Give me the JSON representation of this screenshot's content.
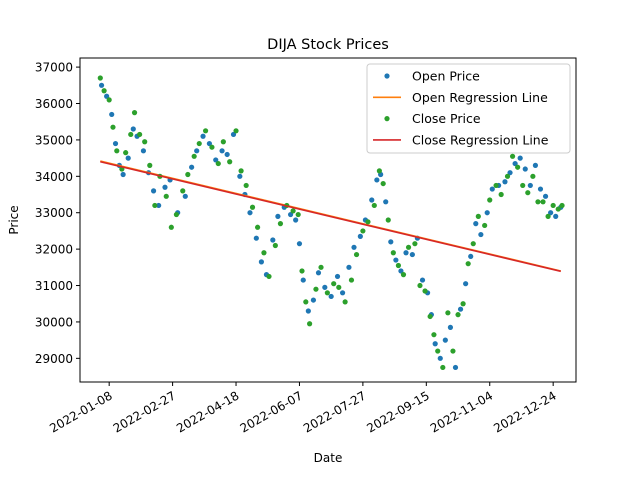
{
  "chart_data": {
    "type": "scatter",
    "title": "DIJA Stock Prices",
    "xlabel": "Date",
    "ylabel": "Price",
    "x_tick_labels": [
      "2022-01-08",
      "2022-02-27",
      "2022-04-18",
      "2022-06-07",
      "2022-07-27",
      "2022-09-15",
      "2022-11-04",
      "2022-12-24"
    ],
    "y_ticks": [
      29000,
      30000,
      31000,
      32000,
      33000,
      34000,
      35000,
      36000,
      37000
    ],
    "xlim": [
      "2021-12-16",
      "2023-01-11"
    ],
    "ylim": [
      28350,
      37250
    ],
    "grid": false,
    "legend_position": "top-right",
    "colors": {
      "open": "#1f77b4",
      "open_line": "#ff7f0e",
      "close": "#2ca02c",
      "close_line": "#d62728"
    },
    "series": [
      {
        "name": "Open Price",
        "kind": "points",
        "color": "#1f77b4",
        "points": [
          [
            "2022-01-02",
            36500
          ],
          [
            "2022-01-06",
            36200
          ],
          [
            "2022-01-10",
            35700
          ],
          [
            "2022-01-13",
            34900
          ],
          [
            "2022-01-16",
            34300
          ],
          [
            "2022-01-19",
            34050
          ],
          [
            "2022-01-23",
            34500
          ],
          [
            "2022-01-27",
            35300
          ],
          [
            "2022-01-30",
            35100
          ],
          [
            "2022-02-04",
            34700
          ],
          [
            "2022-02-08",
            34100
          ],
          [
            "2022-02-12",
            33600
          ],
          [
            "2022-02-16",
            33200
          ],
          [
            "2022-02-21",
            33700
          ],
          [
            "2022-02-25",
            33900
          ],
          [
            "2022-03-03",
            33000
          ],
          [
            "2022-03-09",
            33450
          ],
          [
            "2022-03-14",
            34250
          ],
          [
            "2022-03-18",
            34700
          ],
          [
            "2022-03-23",
            35100
          ],
          [
            "2022-03-28",
            34900
          ],
          [
            "2022-04-02",
            34450
          ],
          [
            "2022-04-07",
            34700
          ],
          [
            "2022-04-11",
            34600
          ],
          [
            "2022-04-16",
            35150
          ],
          [
            "2022-04-21",
            34000
          ],
          [
            "2022-04-25",
            33500
          ],
          [
            "2022-04-29",
            33000
          ],
          [
            "2022-05-04",
            32300
          ],
          [
            "2022-05-08",
            31650
          ],
          [
            "2022-05-12",
            31300
          ],
          [
            "2022-05-17",
            32250
          ],
          [
            "2022-05-21",
            32900
          ],
          [
            "2022-05-26",
            33150
          ],
          [
            "2022-05-31",
            32950
          ],
          [
            "2022-06-04",
            32800
          ],
          [
            "2022-06-07",
            32150
          ],
          [
            "2022-06-10",
            31150
          ],
          [
            "2022-06-14",
            30300
          ],
          [
            "2022-06-18",
            30600
          ],
          [
            "2022-06-22",
            31350
          ],
          [
            "2022-06-27",
            30950
          ],
          [
            "2022-07-02",
            30700
          ],
          [
            "2022-07-07",
            31250
          ],
          [
            "2022-07-11",
            30800
          ],
          [
            "2022-07-16",
            31500
          ],
          [
            "2022-07-20",
            32050
          ],
          [
            "2022-07-25",
            32350
          ],
          [
            "2022-07-29",
            32800
          ],
          [
            "2022-08-03",
            33350
          ],
          [
            "2022-08-07",
            33900
          ],
          [
            "2022-08-10",
            34050
          ],
          [
            "2022-08-14",
            33300
          ],
          [
            "2022-08-18",
            32200
          ],
          [
            "2022-08-22",
            31700
          ],
          [
            "2022-08-26",
            31400
          ],
          [
            "2022-08-30",
            31900
          ],
          [
            "2022-09-04",
            31850
          ],
          [
            "2022-09-08",
            32300
          ],
          [
            "2022-09-12",
            31150
          ],
          [
            "2022-09-16",
            30800
          ],
          [
            "2022-09-19",
            30200
          ],
          [
            "2022-09-22",
            29400
          ],
          [
            "2022-09-26",
            29000
          ],
          [
            "2022-09-30",
            29500
          ],
          [
            "2022-10-04",
            29850
          ],
          [
            "2022-10-08",
            28750
          ],
          [
            "2022-10-12",
            30350
          ],
          [
            "2022-10-16",
            31050
          ],
          [
            "2022-10-20",
            31800
          ],
          [
            "2022-10-24",
            32700
          ],
          [
            "2022-10-28",
            32400
          ],
          [
            "2022-11-02",
            33000
          ],
          [
            "2022-11-06",
            33650
          ],
          [
            "2022-11-11",
            33750
          ],
          [
            "2022-11-16",
            33850
          ],
          [
            "2022-11-20",
            34100
          ],
          [
            "2022-11-24",
            34350
          ],
          [
            "2022-11-28",
            34500
          ],
          [
            "2022-12-02",
            34200
          ],
          [
            "2022-12-06",
            33750
          ],
          [
            "2022-12-10",
            34300
          ],
          [
            "2022-12-14",
            33650
          ],
          [
            "2022-12-18",
            33450
          ],
          [
            "2022-12-22",
            33000
          ],
          [
            "2022-12-26",
            32900
          ],
          [
            "2022-12-30",
            33150
          ]
        ]
      },
      {
        "name": "Open Regression Line",
        "kind": "line",
        "color": "#ff7f0e",
        "points": [
          [
            "2022-01-01",
            34420
          ],
          [
            "2022-12-30",
            31400
          ]
        ]
      },
      {
        "name": "Close Price",
        "kind": "points",
        "color": "#2ca02c",
        "points": [
          [
            "2022-01-01",
            36700
          ],
          [
            "2022-01-04",
            36350
          ],
          [
            "2022-01-08",
            36100
          ],
          [
            "2022-01-11",
            35350
          ],
          [
            "2022-01-14",
            34700
          ],
          [
            "2022-01-18",
            34200
          ],
          [
            "2022-01-21",
            34650
          ],
          [
            "2022-01-25",
            35150
          ],
          [
            "2022-01-28",
            35750
          ],
          [
            "2022-02-01",
            35150
          ],
          [
            "2022-02-05",
            34950
          ],
          [
            "2022-02-09",
            34300
          ],
          [
            "2022-02-13",
            33200
          ],
          [
            "2022-02-17",
            34000
          ],
          [
            "2022-02-22",
            33450
          ],
          [
            "2022-02-26",
            32600
          ],
          [
            "2022-03-02",
            32950
          ],
          [
            "2022-03-07",
            33600
          ],
          [
            "2022-03-11",
            34050
          ],
          [
            "2022-03-16",
            34550
          ],
          [
            "2022-03-20",
            34900
          ],
          [
            "2022-03-25",
            35250
          ],
          [
            "2022-03-30",
            34800
          ],
          [
            "2022-04-04",
            34350
          ],
          [
            "2022-04-08",
            34950
          ],
          [
            "2022-04-13",
            34400
          ],
          [
            "2022-04-18",
            35250
          ],
          [
            "2022-04-22",
            34150
          ],
          [
            "2022-04-26",
            33750
          ],
          [
            "2022-05-01",
            33150
          ],
          [
            "2022-05-05",
            32600
          ],
          [
            "2022-05-10",
            31900
          ],
          [
            "2022-05-14",
            31250
          ],
          [
            "2022-05-19",
            32100
          ],
          [
            "2022-05-23",
            32700
          ],
          [
            "2022-05-28",
            33200
          ],
          [
            "2022-06-02",
            33050
          ],
          [
            "2022-06-06",
            32950
          ],
          [
            "2022-06-09",
            31400
          ],
          [
            "2022-06-12",
            30550
          ],
          [
            "2022-06-15",
            29950
          ],
          [
            "2022-06-20",
            30900
          ],
          [
            "2022-06-24",
            31500
          ],
          [
            "2022-06-29",
            30800
          ],
          [
            "2022-07-04",
            31050
          ],
          [
            "2022-07-08",
            30950
          ],
          [
            "2022-07-13",
            30550
          ],
          [
            "2022-07-18",
            31150
          ],
          [
            "2022-07-22",
            31850
          ],
          [
            "2022-07-27",
            32500
          ],
          [
            "2022-07-31",
            32750
          ],
          [
            "2022-08-05",
            33200
          ],
          [
            "2022-08-09",
            34150
          ],
          [
            "2022-08-12",
            33800
          ],
          [
            "2022-08-16",
            32800
          ],
          [
            "2022-08-20",
            31900
          ],
          [
            "2022-08-24",
            31550
          ],
          [
            "2022-08-28",
            31300
          ],
          [
            "2022-09-01",
            32050
          ],
          [
            "2022-09-06",
            32150
          ],
          [
            "2022-09-10",
            31000
          ],
          [
            "2022-09-14",
            30850
          ],
          [
            "2022-09-18",
            30150
          ],
          [
            "2022-09-21",
            29650
          ],
          [
            "2022-09-24",
            29200
          ],
          [
            "2022-09-28",
            28750
          ],
          [
            "2022-10-02",
            30250
          ],
          [
            "2022-10-06",
            29200
          ],
          [
            "2022-10-10",
            30200
          ],
          [
            "2022-10-14",
            30500
          ],
          [
            "2022-10-18",
            31600
          ],
          [
            "2022-10-22",
            32150
          ],
          [
            "2022-10-26",
            32900
          ],
          [
            "2022-10-31",
            32650
          ],
          [
            "2022-11-04",
            33350
          ],
          [
            "2022-11-09",
            33750
          ],
          [
            "2022-11-13",
            33500
          ],
          [
            "2022-11-18",
            34000
          ],
          [
            "2022-11-22",
            34550
          ],
          [
            "2022-11-26",
            34250
          ],
          [
            "2022-11-30",
            33750
          ],
          [
            "2022-12-04",
            33550
          ],
          [
            "2022-12-08",
            34000
          ],
          [
            "2022-12-12",
            33300
          ],
          [
            "2022-12-16",
            33300
          ],
          [
            "2022-12-20",
            32900
          ],
          [
            "2022-12-24",
            33200
          ],
          [
            "2022-12-28",
            33100
          ],
          [
            "2022-12-31",
            33200
          ]
        ]
      },
      {
        "name": "Close Regression Line",
        "kind": "line",
        "color": "#d62728",
        "points": [
          [
            "2022-01-01",
            34400
          ],
          [
            "2022-12-30",
            31390
          ]
        ]
      }
    ]
  }
}
